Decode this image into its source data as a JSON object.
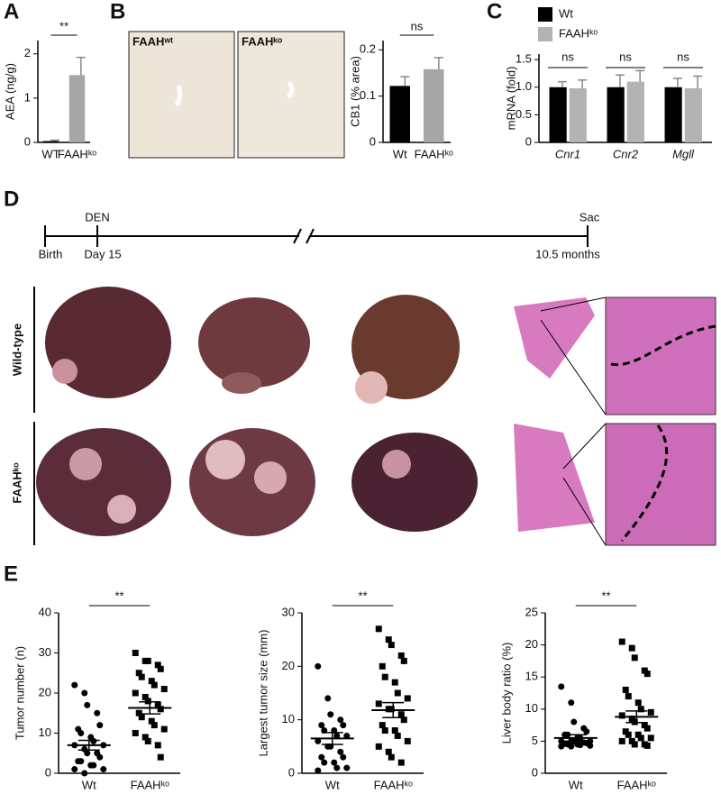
{
  "panel_letters": [
    "A",
    "B",
    "C",
    "D",
    "E"
  ],
  "image_labels": [
    "FAAHʷᵗ",
    "FAAHᵏᵒ"
  ],
  "timeline": {
    "events_top": [
      "DEN",
      "Sac"
    ],
    "events_bottom": [
      "Birth",
      "Day 15",
      "10.5 months"
    ]
  },
  "row_labels": [
    "Wild-type",
    "FAAHᵏᵒ"
  ],
  "chart_data": [
    {
      "type": "bar",
      "y_label": "AEA (ng/g)",
      "categories": [
        "WT",
        "FAAHᵏᵒ"
      ],
      "values": [
        0.03,
        1.52
      ],
      "errors": [
        0.02,
        0.4
      ],
      "colors": [
        "#000000",
        "#a6a6a6"
      ],
      "ylim": [
        0,
        2.3
      ],
      "yticks": [
        0,
        1,
        2
      ],
      "annotations": [
        "**"
      ]
    },
    {
      "type": "bar",
      "y_label": "CB1 (% area)",
      "categories": [
        "Wt",
        "FAAHᵏᵒ"
      ],
      "values": [
        0.122,
        0.158
      ],
      "errors": [
        0.02,
        0.025
      ],
      "colors": [
        "#000000",
        "#a6a6a6"
      ],
      "ylim": [
        0,
        0.22
      ],
      "yticks": [
        0,
        0.1,
        0.2
      ],
      "annotations": [
        "ns"
      ]
    },
    {
      "type": "grouped_bar",
      "y_label": "mRNA (fold)",
      "categories": [
        "Cnr1",
        "Cnr2",
        "Mgll"
      ],
      "series": [
        {
          "name": "Wt",
          "color": "#000000",
          "values": [
            1.0,
            1.0,
            1.0
          ],
          "errors": [
            0.1,
            0.22,
            0.16
          ]
        },
        {
          "name": "FAAHᵏᵒ",
          "color": "#b3b3b3",
          "values": [
            0.98,
            1.1,
            0.98
          ],
          "errors": [
            0.15,
            0.2,
            0.22
          ]
        }
      ],
      "ylim": [
        0,
        1.6
      ],
      "yticks": [
        0,
        0.5,
        {
          "value": 1,
          "label": "1.0"
        },
        1.5
      ],
      "annotations": [
        "ns",
        "ns",
        "ns"
      ]
    },
    {
      "type": "scatter",
      "y_label": "Tumor number (n)",
      "categories": [
        "Wt",
        "FAAHᵏᵒ"
      ],
      "ylim": [
        0,
        40
      ],
      "yticks": [
        0,
        10,
        20,
        30,
        40
      ],
      "annotations": [
        "**"
      ],
      "groups": [
        {
          "marker": "circle",
          "mean": 7,
          "sem": 1.2,
          "values": [
            22,
            20,
            17,
            15,
            12,
            11,
            10,
            9,
            8,
            7,
            7,
            6,
            5,
            5,
            4,
            3,
            3,
            2,
            2,
            1,
            1,
            0
          ]
        },
        {
          "marker": "square",
          "mean": 16.3,
          "sem": 1.5,
          "values": [
            30,
            28,
            28,
            27,
            26,
            25,
            24,
            23,
            22,
            21,
            20,
            19,
            18,
            17,
            16,
            15,
            14,
            13,
            12,
            11,
            10,
            9,
            8,
            7,
            4
          ]
        }
      ]
    },
    {
      "type": "scatter",
      "y_label": "Largest tumor size (mm)",
      "categories": [
        "Wt",
        "FAAHᵏᵒ"
      ],
      "ylim": [
        0,
        30
      ],
      "yticks": [
        0,
        10,
        20,
        30
      ],
      "annotations": [
        "**"
      ],
      "groups": [
        {
          "marker": "circle",
          "mean": 6.5,
          "sem": 1.1,
          "values": [
            20,
            14,
            11,
            10,
            9,
            9,
            8,
            8,
            7,
            7,
            6,
            5,
            5,
            4,
            3,
            3,
            2,
            2,
            1,
            1,
            0.5
          ]
        },
        {
          "marker": "square",
          "mean": 11.8,
          "sem": 1.4,
          "values": [
            27,
            25,
            24,
            22,
            21,
            20,
            18,
            17,
            15,
            14,
            13,
            12,
            12,
            11,
            10,
            9,
            8,
            8,
            7,
            6,
            5,
            4,
            3,
            2
          ]
        }
      ]
    },
    {
      "type": "scatter",
      "y_label": "Liver body ratio (%)",
      "categories": [
        "Wt",
        "FAAHᵏᵒ"
      ],
      "ylim": [
        0,
        25
      ],
      "yticks": [
        0,
        5,
        10,
        15,
        20,
        25
      ],
      "annotations": [
        "**"
      ],
      "groups": [
        {
          "marker": "circle",
          "mean": 5.5,
          "sem": 0.5,
          "values": [
            13.5,
            11,
            8,
            7,
            6.5,
            6,
            6,
            5.5,
            5.5,
            5,
            5,
            5,
            5,
            4.8,
            4.7,
            4.6,
            4.5,
            4.5,
            4.4,
            4.3,
            4.2,
            4.2
          ]
        },
        {
          "marker": "square",
          "mean": 8.8,
          "sem": 0.9,
          "values": [
            20.5,
            19.5,
            18,
            16,
            15.5,
            13,
            12,
            11,
            10,
            9.5,
            9,
            8.5,
            8,
            7.5,
            7,
            6.5,
            6,
            6,
            5.5,
            5.5,
            5,
            5,
            4.5,
            4.5,
            4.3
          ]
        }
      ]
    }
  ]
}
